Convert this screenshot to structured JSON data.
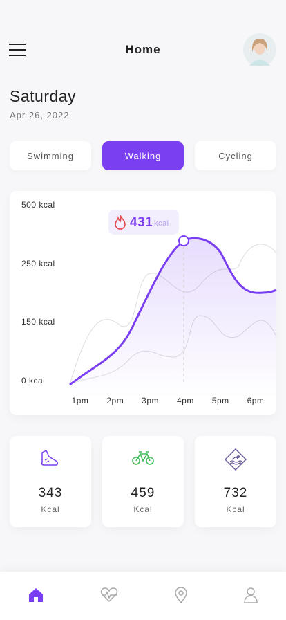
{
  "header": {
    "title": "Home"
  },
  "date": {
    "day": "Saturday",
    "date": "Apr 26, 2022"
  },
  "tabs": [
    {
      "label": "Swimming",
      "active": false
    },
    {
      "label": "Walking",
      "active": true
    },
    {
      "label": "Cycling",
      "active": false
    }
  ],
  "chart": {
    "y_labels": [
      "500 kcal",
      "250 kcal",
      "150 kcal",
      "0 kcal"
    ],
    "x_labels": [
      "1pm",
      "2pm",
      "3pm",
      "4pm",
      "5pm",
      "6pm"
    ],
    "callout": {
      "value": "431",
      "unit": "kcal"
    }
  },
  "stats": [
    {
      "value": "343",
      "unit": "Kcal"
    },
    {
      "value": "459",
      "unit": "Kcal"
    },
    {
      "value": "732",
      "unit": "Kcal"
    }
  ]
}
